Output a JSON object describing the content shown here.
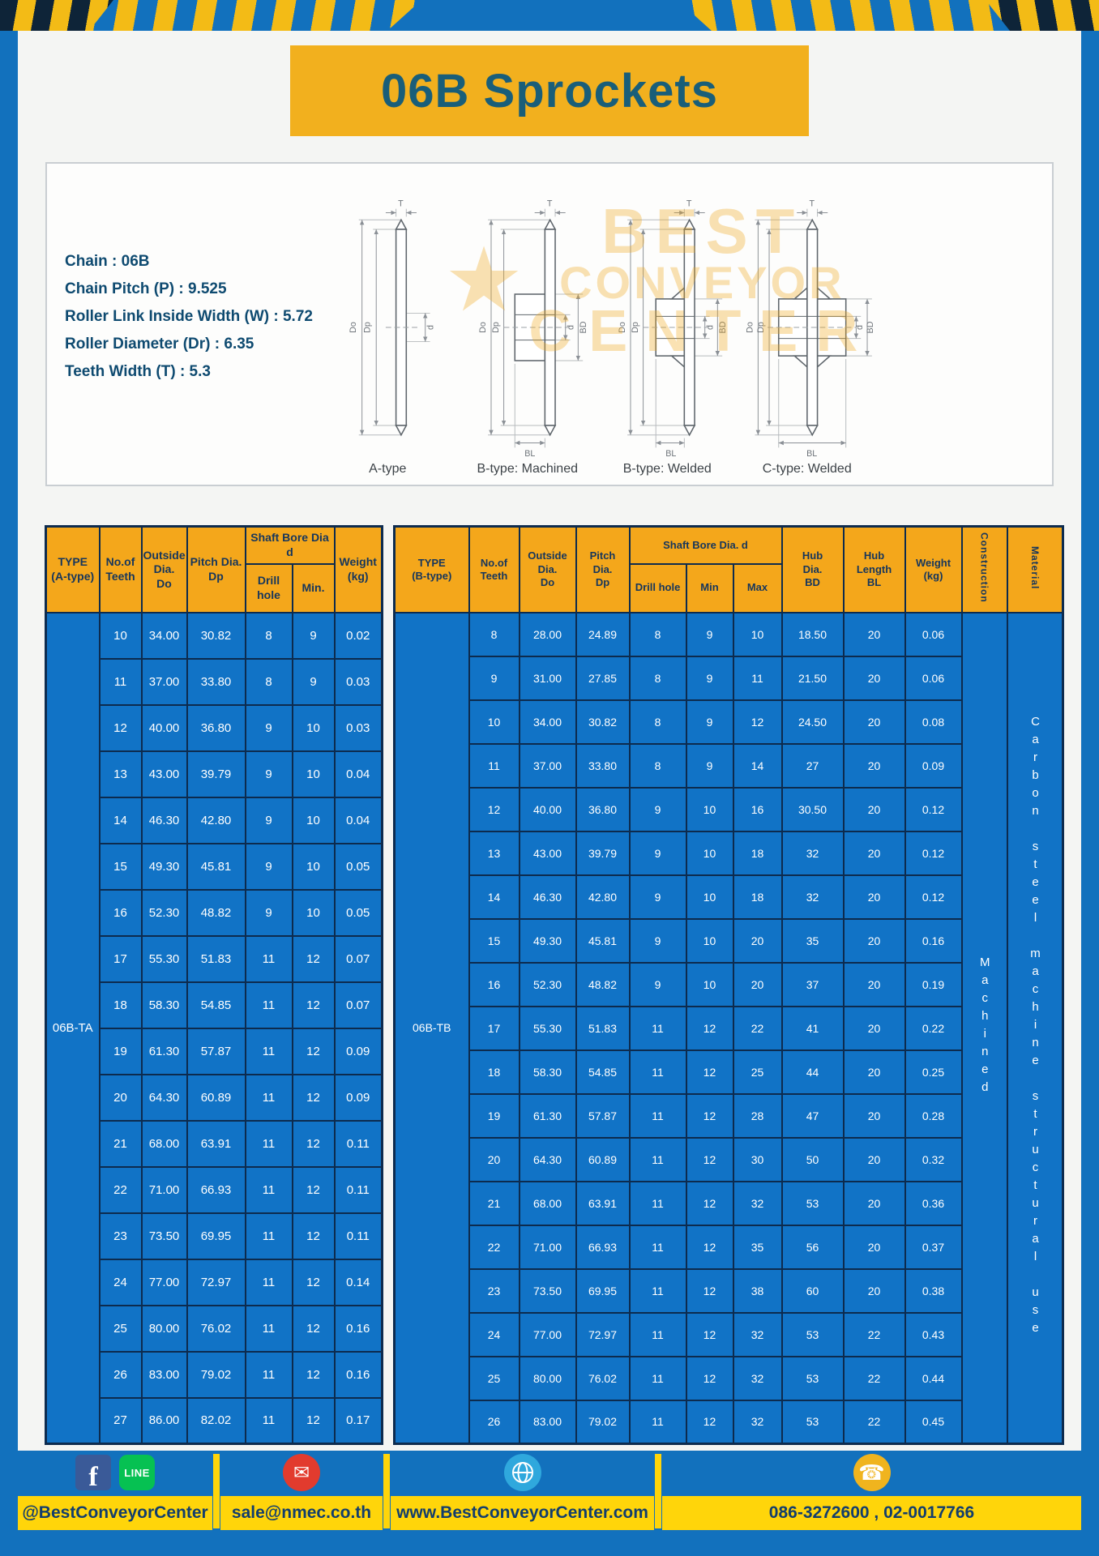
{
  "title": "06B Sprockets",
  "specs": [
    "Chain  :  06B",
    "Chain Pitch (P)  :  9.525",
    "Roller Link Inside Width (W)  :  5.72",
    "Roller Diameter (Dr)  :  6.35",
    "Teeth Width (T)  :  5.3"
  ],
  "watermark": {
    "star": "★",
    "line1": "BEST",
    "line2": "CONVEYOR",
    "line3": "CENTER"
  },
  "diagrams": {
    "captions": [
      "A-type",
      "B-type: Machined",
      "B-type: Welded",
      "C-type: Welded"
    ],
    "dims": {
      "T": "T",
      "Do": "Do",
      "Dp": "Dp",
      "d": "d",
      "BD": "BD",
      "BL": "BL"
    }
  },
  "table_a": {
    "h_type": [
      "TYPE",
      "(A-type)"
    ],
    "h_teeth": [
      "No.of",
      "Teeth"
    ],
    "h_outside": [
      "Outside",
      "Dia.",
      "Do"
    ],
    "h_pitch": [
      "Pitch Dia.",
      "Dp"
    ],
    "h_bore_group": "Shaft Bore Dia d",
    "h_drill": "Drill hole",
    "h_min": "Min.",
    "h_weight": [
      "Weight",
      "(kg)"
    ],
    "type_value": "06B-TA",
    "rows": [
      [
        "10",
        "34.00",
        "30.82",
        "8",
        "9",
        "0.02"
      ],
      [
        "11",
        "37.00",
        "33.80",
        "8",
        "9",
        "0.03"
      ],
      [
        "12",
        "40.00",
        "36.80",
        "9",
        "10",
        "0.03"
      ],
      [
        "13",
        "43.00",
        "39.79",
        "9",
        "10",
        "0.04"
      ],
      [
        "14",
        "46.30",
        "42.80",
        "9",
        "10",
        "0.04"
      ],
      [
        "15",
        "49.30",
        "45.81",
        "9",
        "10",
        "0.05"
      ],
      [
        "16",
        "52.30",
        "48.82",
        "9",
        "10",
        "0.05"
      ],
      [
        "17",
        "55.30",
        "51.83",
        "11",
        "12",
        "0.07"
      ],
      [
        "18",
        "58.30",
        "54.85",
        "11",
        "12",
        "0.07"
      ],
      [
        "19",
        "61.30",
        "57.87",
        "11",
        "12",
        "0.09"
      ],
      [
        "20",
        "64.30",
        "60.89",
        "11",
        "12",
        "0.09"
      ],
      [
        "21",
        "68.00",
        "63.91",
        "11",
        "12",
        "0.11"
      ],
      [
        "22",
        "71.00",
        "66.93",
        "11",
        "12",
        "0.11"
      ],
      [
        "23",
        "73.50",
        "69.95",
        "11",
        "12",
        "0.11"
      ],
      [
        "24",
        "77.00",
        "72.97",
        "11",
        "12",
        "0.14"
      ],
      [
        "25",
        "80.00",
        "76.02",
        "11",
        "12",
        "0.16"
      ],
      [
        "26",
        "83.00",
        "79.02",
        "11",
        "12",
        "0.16"
      ],
      [
        "27",
        "86.00",
        "82.02",
        "11",
        "12",
        "0.17"
      ]
    ]
  },
  "table_b": {
    "h_type": [
      "TYPE",
      "(B-type)"
    ],
    "h_teeth": [
      "No.of",
      "Teeth"
    ],
    "h_outside": [
      "Outside",
      "Dia.",
      "Do"
    ],
    "h_pitch": [
      "Pitch",
      "Dia.",
      "Dp"
    ],
    "h_bore_group": "Shaft Bore Dia.  d",
    "h_drill": "Drill hole",
    "h_min": "Min",
    "h_max": "Max",
    "h_hub_dia": [
      "Hub",
      "Dia.",
      "BD"
    ],
    "h_hub_len": [
      "Hub",
      "Length",
      "BL"
    ],
    "h_weight": [
      "Weight",
      "(kg)"
    ],
    "h_construction": "Construction",
    "h_material": "Material",
    "type_value": "06B-TB",
    "side_cells": [
      {
        "name": "construction-cell",
        "value": "Machined"
      },
      {
        "name": "material-cell",
        "value": "Carbon steel machine structural use"
      }
    ],
    "rows": [
      [
        "8",
        "28.00",
        "24.89",
        "8",
        "9",
        "10",
        "18.50",
        "20",
        "0.06"
      ],
      [
        "9",
        "31.00",
        "27.85",
        "8",
        "9",
        "11",
        "21.50",
        "20",
        "0.06"
      ],
      [
        "10",
        "34.00",
        "30.82",
        "8",
        "9",
        "12",
        "24.50",
        "20",
        "0.08"
      ],
      [
        "11",
        "37.00",
        "33.80",
        "8",
        "9",
        "14",
        "27",
        "20",
        "0.09"
      ],
      [
        "12",
        "40.00",
        "36.80",
        "9",
        "10",
        "16",
        "30.50",
        "20",
        "0.12"
      ],
      [
        "13",
        "43.00",
        "39.79",
        "9",
        "10",
        "18",
        "32",
        "20",
        "0.12"
      ],
      [
        "14",
        "46.30",
        "42.80",
        "9",
        "10",
        "18",
        "32",
        "20",
        "0.12"
      ],
      [
        "15",
        "49.30",
        "45.81",
        "9",
        "10",
        "20",
        "35",
        "20",
        "0.16"
      ],
      [
        "16",
        "52.30",
        "48.82",
        "9",
        "10",
        "20",
        "37",
        "20",
        "0.19"
      ],
      [
        "17",
        "55.30",
        "51.83",
        "11",
        "12",
        "22",
        "41",
        "20",
        "0.22"
      ],
      [
        "18",
        "58.30",
        "54.85",
        "11",
        "12",
        "25",
        "44",
        "20",
        "0.25"
      ],
      [
        "19",
        "61.30",
        "57.87",
        "11",
        "12",
        "28",
        "47",
        "20",
        "0.28"
      ],
      [
        "20",
        "64.30",
        "60.89",
        "11",
        "12",
        "30",
        "50",
        "20",
        "0.32"
      ],
      [
        "21",
        "68.00",
        "63.91",
        "11",
        "12",
        "32",
        "53",
        "20",
        "0.36"
      ],
      [
        "22",
        "71.00",
        "66.93",
        "11",
        "12",
        "35",
        "56",
        "20",
        "0.37"
      ],
      [
        "23",
        "73.50",
        "69.95",
        "11",
        "12",
        "38",
        "60",
        "20",
        "0.38"
      ],
      [
        "24",
        "77.00",
        "72.97",
        "11",
        "12",
        "32",
        "53",
        "22",
        "0.43"
      ],
      [
        "25",
        "80.00",
        "76.02",
        "11",
        "12",
        "32",
        "53",
        "22",
        "0.44"
      ],
      [
        "26",
        "83.00",
        "79.02",
        "11",
        "12",
        "32",
        "53",
        "22",
        "0.45"
      ]
    ]
  },
  "footer": {
    "facebook_label": "f",
    "line_label": "LINE",
    "handle": "@BestConveyorCenter",
    "email": "sale@nmec.co.th",
    "website": "www.BestConveyorCenter.com",
    "phones": "086-3272600 , 02-0017766"
  }
}
